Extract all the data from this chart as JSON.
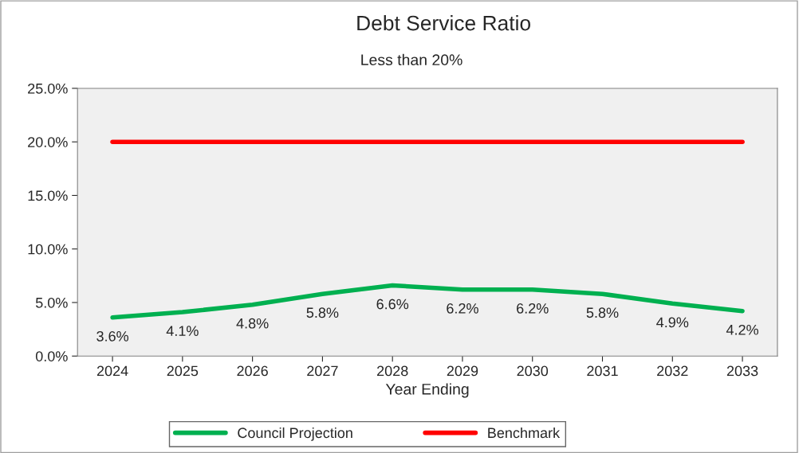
{
  "chart_data": {
    "type": "line",
    "title": "Debt Service Ratio",
    "subtitle": "Less than 20%",
    "xlabel": "Year Ending",
    "categories": [
      "2024",
      "2025",
      "2026",
      "2027",
      "2028",
      "2029",
      "2030",
      "2031",
      "2032",
      "2033"
    ],
    "series": [
      {
        "name": "Council Projection",
        "color": "#00b050",
        "values": [
          3.6,
          4.1,
          4.8,
          5.8,
          6.6,
          6.2,
          6.2,
          5.8,
          4.9,
          4.2
        ],
        "value_labels": [
          "3.6%",
          "4.1%",
          "4.8%",
          "5.8%",
          "6.6%",
          "6.2%",
          "6.2%",
          "5.8%",
          "4.9%",
          "4.2%"
        ]
      },
      {
        "name": "Benchmark",
        "color": "#ff0000",
        "values": [
          20,
          20,
          20,
          20,
          20,
          20,
          20,
          20,
          20,
          20
        ]
      }
    ],
    "ylim": [
      0,
      25
    ],
    "yticks": [
      {
        "value": 0,
        "label": "0.0%"
      },
      {
        "value": 5,
        "label": "5.0%"
      },
      {
        "value": 10,
        "label": "10.0%"
      },
      {
        "value": 15,
        "label": "15.0%"
      },
      {
        "value": 20,
        "label": "20.0%"
      },
      {
        "value": 25,
        "label": "25.0%"
      }
    ],
    "grid": false,
    "legend": "bottom",
    "marker": "none",
    "line_style": "solid"
  }
}
